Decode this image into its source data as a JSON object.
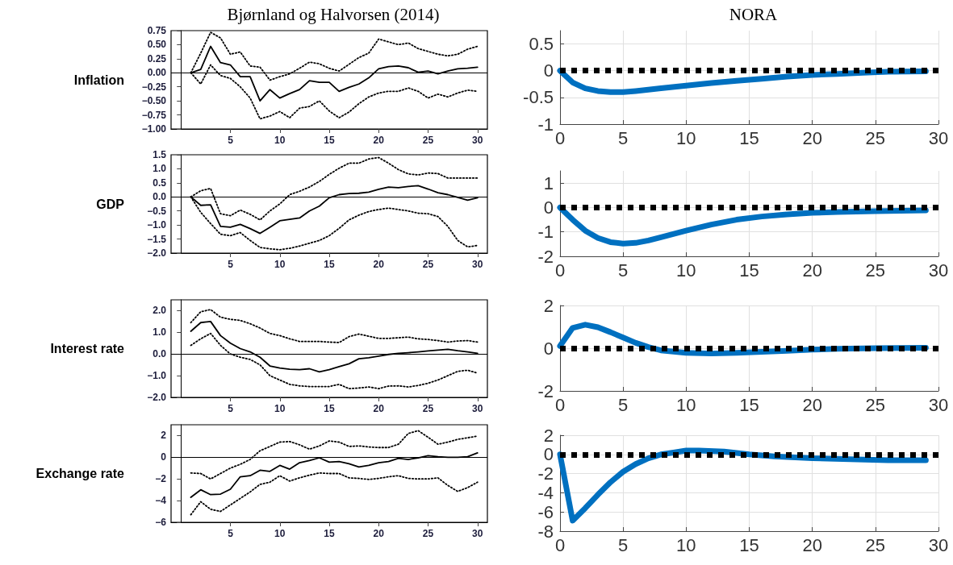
{
  "chart_data": [
    {
      "type": "line",
      "title": "Bjørnland og Halvorsen (2014)",
      "ylabel": "Inflation",
      "marker": "none",
      "x": [
        1,
        2,
        3,
        4,
        5,
        6,
        7,
        8,
        9,
        10,
        11,
        12,
        13,
        14,
        15,
        16,
        17,
        18,
        19,
        20,
        21,
        22,
        23,
        24,
        25,
        26,
        27,
        28,
        29,
        30
      ],
      "series": [
        {
          "color": "#000000",
          "line_style": "solid",
          "values": [
            0,
            0.06,
            0.47,
            0.18,
            0.14,
            -0.07,
            -0.07,
            -0.5,
            -0.3,
            -0.45,
            -0.37,
            -0.3,
            -0.14,
            -0.17,
            -0.17,
            -0.33,
            -0.26,
            -0.2,
            -0.09,
            0.07,
            0.11,
            0.12,
            0.09,
            0.01,
            0.03,
            -0.02,
            0.03,
            0.07,
            0.08,
            0.1
          ]
        },
        {
          "color": "#000000",
          "line_style": "dotted",
          "values": [
            0,
            0.35,
            0.72,
            0.62,
            0.33,
            0.37,
            0.12,
            0.1,
            -0.13,
            -0.07,
            -0.02,
            0.08,
            0.19,
            0.16,
            0.08,
            0.03,
            0.15,
            0.27,
            0.35,
            0.6,
            0.55,
            0.5,
            0.53,
            0.43,
            0.38,
            0.33,
            0.3,
            0.33,
            0.42,
            0.47
          ]
        },
        {
          "color": "#000000",
          "line_style": "dotted",
          "values": [
            0,
            -0.2,
            0.14,
            -0.05,
            -0.1,
            -0.25,
            -0.45,
            -0.82,
            -0.77,
            -0.69,
            -0.8,
            -0.63,
            -0.6,
            -0.5,
            -0.68,
            -0.8,
            -0.7,
            -0.55,
            -0.43,
            -0.36,
            -0.33,
            -0.33,
            -0.27,
            -0.33,
            -0.45,
            -0.38,
            -0.43,
            -0.36,
            -0.31,
            -0.33
          ]
        }
      ],
      "xlim": [
        -1,
        31
      ],
      "xticks": [
        5,
        10,
        15,
        20,
        25,
        30
      ],
      "ylim": [
        -1,
        0.75
      ],
      "yticks": [
        {
          "value": -1,
          "label": "−1.00"
        },
        {
          "value": -0.75,
          "label": "−0.75"
        },
        {
          "value": -0.5,
          "label": "−0.50"
        },
        {
          "value": -0.25,
          "label": "−0.25"
        },
        {
          "value": 0,
          "label": "0.00"
        },
        {
          "value": 0.25,
          "label": "0.25"
        },
        {
          "value": 0.5,
          "label": "0.50"
        },
        {
          "value": 0.75,
          "label": "0.75"
        }
      ],
      "ref_lines": [
        {
          "axis": "y",
          "value": 0,
          "color": "#000000",
          "line_style": "solid"
        }
      ]
    },
    {
      "type": "line",
      "title": "NORA",
      "marker": "none",
      "grid": true,
      "x": [
        0,
        1,
        2,
        3,
        4,
        5,
        6,
        8,
        10,
        12,
        14,
        16,
        18,
        20,
        22,
        24,
        26,
        29
      ],
      "series": [
        {
          "color": "#0070c0",
          "line_style": "solid",
          "values": [
            0,
            -0.22,
            -0.33,
            -0.38,
            -0.4,
            -0.4,
            -0.38,
            -0.33,
            -0.28,
            -0.23,
            -0.19,
            -0.15,
            -0.11,
            -0.08,
            -0.06,
            -0.04,
            -0.02,
            -0.01
          ]
        }
      ],
      "xlim": [
        0,
        30
      ],
      "xticks": [
        0,
        5,
        10,
        15,
        20,
        25,
        30
      ],
      "ylim": [
        -1,
        0.75
      ],
      "yticks": [
        -1,
        -0.5,
        0,
        0.5
      ],
      "ref_lines": [
        {
          "axis": "y",
          "value": 0,
          "color": "#000000",
          "line_style": "dotted"
        }
      ]
    },
    {
      "type": "line",
      "ylabel": "GDP",
      "marker": "none",
      "x": [
        1,
        2,
        3,
        4,
        5,
        6,
        7,
        8,
        9,
        10,
        11,
        12,
        13,
        14,
        15,
        16,
        17,
        18,
        19,
        20,
        21,
        22,
        23,
        24,
        25,
        26,
        27,
        28,
        29,
        30
      ],
      "series": [
        {
          "color": "#000000",
          "line_style": "solid",
          "values": [
            0,
            -0.3,
            -0.28,
            -1.05,
            -1.08,
            -0.98,
            -1.13,
            -1.3,
            -1.08,
            -0.85,
            -0.8,
            -0.75,
            -0.5,
            -0.33,
            -0.03,
            0.08,
            0.12,
            0.13,
            0.17,
            0.27,
            0.35,
            0.33,
            0.37,
            0.4,
            0.28,
            0.15,
            0.08,
            -0.02,
            -0.12,
            -0.03
          ]
        },
        {
          "color": "#000000",
          "line_style": "dotted",
          "values": [
            0,
            0.22,
            0.3,
            -0.6,
            -0.67,
            -0.47,
            -0.62,
            -0.82,
            -0.5,
            -0.25,
            0.08,
            0.2,
            0.35,
            0.55,
            0.8,
            1.02,
            1.2,
            1.2,
            1.35,
            1.4,
            1.2,
            0.97,
            0.82,
            0.78,
            0.85,
            0.83,
            0.67,
            0.67,
            0.67,
            0.67
          ]
        },
        {
          "color": "#000000",
          "line_style": "dotted",
          "values": [
            0,
            -0.55,
            -0.95,
            -1.33,
            -1.38,
            -1.27,
            -1.55,
            -1.8,
            -1.85,
            -1.88,
            -1.83,
            -1.75,
            -1.65,
            -1.55,
            -1.38,
            -1.12,
            -0.82,
            -0.65,
            -0.52,
            -0.45,
            -0.4,
            -0.45,
            -0.5,
            -0.58,
            -0.6,
            -0.7,
            -1.05,
            -1.55,
            -1.78,
            -1.73
          ]
        }
      ],
      "xlim": [
        -1,
        31
      ],
      "xticks": [
        5,
        10,
        15,
        20,
        25,
        30
      ],
      "ylim": [
        -2,
        1.5
      ],
      "yticks": [
        {
          "value": -2,
          "label": "−2.0"
        },
        {
          "value": -1.5,
          "label": "−1.5"
        },
        {
          "value": -1,
          "label": "−1.0"
        },
        {
          "value": -0.5,
          "label": "−0.5"
        },
        {
          "value": 0,
          "label": "0.0"
        },
        {
          "value": 0.5,
          "label": "0.5"
        },
        {
          "value": 1,
          "label": "1.0"
        },
        {
          "value": 1.5,
          "label": "1.5"
        }
      ],
      "ref_lines": [
        {
          "axis": "y",
          "value": 0,
          "color": "#000000",
          "line_style": "solid"
        }
      ]
    },
    {
      "type": "line",
      "marker": "none",
      "grid": true,
      "x": [
        0,
        1,
        2,
        3,
        4,
        5,
        6,
        7,
        8,
        10,
        12,
        14,
        16,
        18,
        20,
        22,
        25,
        29
      ],
      "series": [
        {
          "color": "#0070c0",
          "line_style": "solid",
          "values": [
            0,
            -0.5,
            -0.95,
            -1.25,
            -1.42,
            -1.48,
            -1.45,
            -1.35,
            -1.22,
            -0.95,
            -0.7,
            -0.5,
            -0.37,
            -0.28,
            -0.22,
            -0.18,
            -0.15,
            -0.12
          ]
        }
      ],
      "xlim": [
        0,
        30
      ],
      "xticks": [
        0,
        5,
        10,
        15,
        20,
        25,
        30
      ],
      "ylim": [
        -2,
        1.5
      ],
      "yticks": [
        -2,
        -1,
        0,
        1
      ],
      "ref_lines": [
        {
          "axis": "y",
          "value": 0,
          "color": "#000000",
          "line_style": "dotted"
        }
      ]
    },
    {
      "type": "line",
      "ylabel": "Interest rate",
      "marker": "none",
      "x": [
        1,
        2,
        3,
        4,
        5,
        6,
        7,
        8,
        9,
        10,
        11,
        12,
        13,
        14,
        15,
        16,
        17,
        18,
        19,
        20,
        21,
        22,
        23,
        24,
        25,
        26,
        27,
        28,
        29,
        30
      ],
      "series": [
        {
          "color": "#000000",
          "line_style": "solid",
          "values": [
            1.05,
            1.45,
            1.5,
            0.85,
            0.5,
            0.25,
            0.1,
            -0.15,
            -0.55,
            -0.65,
            -0.7,
            -0.72,
            -0.68,
            -0.82,
            -0.72,
            -0.58,
            -0.45,
            -0.22,
            -0.17,
            -0.1,
            -0.02,
            0.03,
            0.06,
            0.1,
            0.14,
            0.18,
            0.22,
            0.15,
            0.1,
            0.03
          ]
        },
        {
          "color": "#000000",
          "line_style": "dotted",
          "values": [
            1.45,
            1.95,
            2.05,
            1.7,
            1.6,
            1.55,
            1.4,
            1.2,
            0.95,
            0.85,
            0.7,
            0.58,
            0.58,
            0.58,
            0.55,
            0.53,
            0.8,
            0.92,
            0.82,
            0.72,
            0.72,
            0.75,
            0.78,
            0.7,
            0.67,
            0.62,
            0.55,
            0.6,
            0.62,
            0.55
          ]
        },
        {
          "color": "#000000",
          "line_style": "dotted",
          "values": [
            0.4,
            0.7,
            0.95,
            0.4,
            0,
            -0.15,
            -0.25,
            -0.5,
            -1,
            -1.2,
            -1.4,
            -1.47,
            -1.5,
            -1.5,
            -1.5,
            -1.4,
            -1.6,
            -1.57,
            -1.52,
            -1.6,
            -1.48,
            -1.47,
            -1.52,
            -1.45,
            -1.35,
            -1.2,
            -1,
            -0.8,
            -0.75,
            -0.88
          ]
        }
      ],
      "xlim": [
        -1,
        31
      ],
      "xticks": [
        5,
        10,
        15,
        20,
        25,
        30
      ],
      "ylim": [
        -2,
        2.5
      ],
      "yticks": [
        {
          "value": -2,
          "label": "−2.0"
        },
        {
          "value": -1,
          "label": "−1.0"
        },
        {
          "value": 0,
          "label": "0.0"
        },
        {
          "value": 1,
          "label": "1.0"
        },
        {
          "value": 2,
          "label": "2.0"
        }
      ],
      "ref_lines": [
        {
          "axis": "y",
          "value": 0,
          "color": "#000000",
          "line_style": "solid"
        }
      ]
    },
    {
      "type": "line",
      "marker": "none",
      "grid": true,
      "x": [
        0,
        1,
        2,
        3,
        4,
        5,
        6,
        7,
        8,
        10,
        12,
        14,
        16,
        18,
        20,
        22,
        25,
        29
      ],
      "series": [
        {
          "color": "#0070c0",
          "line_style": "solid",
          "values": [
            0.1,
            0.95,
            1.1,
            0.98,
            0.75,
            0.5,
            0.25,
            0.05,
            -0.1,
            -0.22,
            -0.25,
            -0.22,
            -0.17,
            -0.12,
            -0.07,
            -0.03,
            0,
            0.02
          ]
        }
      ],
      "xlim": [
        0,
        30
      ],
      "xticks": [
        0,
        5,
        10,
        15,
        20,
        25,
        30
      ],
      "ylim": [
        -2,
        2
      ],
      "yticks": [
        -2,
        0,
        2
      ],
      "ref_lines": [
        {
          "axis": "y",
          "value": 0,
          "color": "#000000",
          "line_style": "dotted"
        }
      ]
    },
    {
      "type": "line",
      "ylabel": "Exchange rate",
      "marker": "none",
      "x": [
        1,
        2,
        3,
        4,
        5,
        6,
        7,
        8,
        9,
        10,
        11,
        12,
        13,
        14,
        15,
        16,
        17,
        18,
        19,
        20,
        21,
        22,
        23,
        24,
        25,
        26,
        27,
        28,
        29,
        30
      ],
      "series": [
        {
          "color": "#000000",
          "line_style": "solid",
          "values": [
            -3.7,
            -3,
            -3.45,
            -3.4,
            -2.95,
            -1.8,
            -1.7,
            -1.2,
            -1.3,
            -0.75,
            -1.1,
            -0.5,
            -0.3,
            -0.05,
            -0.45,
            -0.4,
            -0.6,
            -0.9,
            -0.75,
            -0.5,
            -0.4,
            -0.1,
            -0.2,
            -0.05,
            0.15,
            0.05,
            0,
            0,
            0.05,
            0.4
          ]
        },
        {
          "color": "#000000",
          "line_style": "dotted",
          "values": [
            -1.45,
            -1.5,
            -2,
            -1.5,
            -1,
            -0.65,
            -0.2,
            0.6,
            1,
            1.4,
            1.45,
            1.15,
            0.75,
            1.05,
            1.5,
            1.4,
            1,
            1.05,
            0.95,
            0.9,
            0.9,
            1.2,
            2.2,
            2.45,
            1.85,
            1.2,
            1.4,
            1.65,
            1.8,
            1.95
          ]
        },
        {
          "color": "#000000",
          "line_style": "dotted",
          "values": [
            -5.3,
            -4.1,
            -4.8,
            -5,
            -4.4,
            -3.8,
            -3.2,
            -2.5,
            -2.3,
            -1.7,
            -2.2,
            -1.9,
            -1.65,
            -1.45,
            -1.5,
            -1.5,
            -1.9,
            -1.95,
            -2.05,
            -1.95,
            -1.8,
            -1.7,
            -1.95,
            -2,
            -2,
            -1.9,
            -2.6,
            -3.15,
            -2.8,
            -2.3
          ]
        }
      ],
      "xlim": [
        -1,
        31
      ],
      "xticks": [
        5,
        10,
        15,
        20,
        25,
        30
      ],
      "ylim": [
        -6,
        3
      ],
      "yticks": [
        {
          "value": -6,
          "label": "−6"
        },
        {
          "value": -4,
          "label": "−4"
        },
        {
          "value": -2,
          "label": "−2"
        },
        0,
        2
      ],
      "ref_lines": [
        {
          "axis": "y",
          "value": 0,
          "color": "#000000",
          "line_style": "solid"
        }
      ]
    },
    {
      "type": "line",
      "marker": "none",
      "grid": true,
      "x": [
        0,
        1,
        2,
        3,
        4,
        5,
        6,
        7,
        8,
        9,
        10,
        11,
        13,
        15,
        17,
        20,
        23,
        26,
        29
      ],
      "series": [
        {
          "color": "#0070c0",
          "line_style": "solid",
          "values": [
            0,
            -6.9,
            -5.6,
            -4.2,
            -2.9,
            -1.8,
            -1,
            -0.4,
            0,
            0.2,
            0.4,
            0.4,
            0.3,
            0,
            -0.2,
            -0.4,
            -0.5,
            -0.6,
            -0.6
          ]
        }
      ],
      "xlim": [
        0,
        30
      ],
      "xticks": [
        0,
        5,
        10,
        15,
        20,
        25,
        30
      ],
      "ylim": [
        -8,
        2
      ],
      "yticks": [
        -8,
        -6,
        -4,
        -2,
        0,
        2
      ],
      "ref_lines": [
        {
          "axis": "y",
          "value": 0,
          "color": "#000000",
          "line_style": "dotted"
        }
      ]
    }
  ]
}
